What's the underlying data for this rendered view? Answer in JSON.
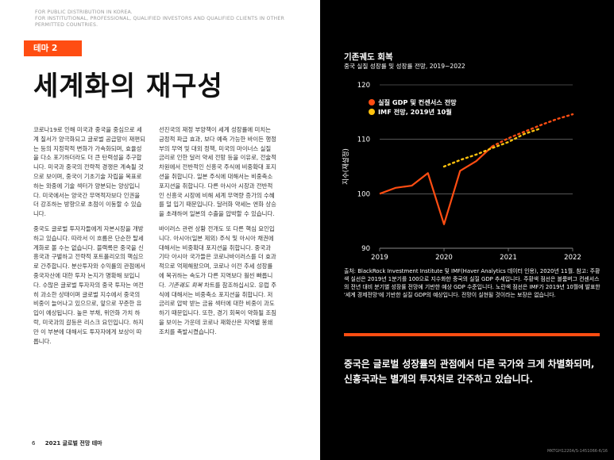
{
  "disclaimer": {
    "lines": [
      "FOR PUBLIC DISTRIBUTION IN KOREA.",
      "FOR INSTITUTIONAL, PROFESSIONAL, QUALIFIED INVESTORS AND QUALIFIED CLIENTS IN OTHER",
      "PERMITTED COUNTRIES."
    ]
  },
  "theme_tag": "테마 2",
  "title": "세계화의 재구성",
  "col1": {
    "p1": "코로나19로 인해 미국과 중국을 중심으로 세계 질서가 양극화되고 글로벌 공급망이 재편되는 등의 지정학적 변화가 가속화되며, 효율성을 다소 포기하더라도 더 큰 탄력성을 추구합니다. 미국과 중국의 전략적 경쟁은 계속될 것으로 보이며, 중국이 기초기술 자립을 목표로 하는 와중에 기술 섹터가 양분되는 양상입니다. 미국에서는 양국간 무역적자보다 인권을 더 강조하는 방향으로 초점이 이동할 수 있습니다.",
    "p2": "중국도 글로벌 투자자들에게 자본시장을 개방하고 있습니다. 따라서 이 흐름은 단순한 탈세계화로 볼 수는 없습니다. 블랙록은 중국을 신흥국과 구별하고 전략적 포트폴리오의 핵심으로 간주합니다. 분산투자와 수익률의 관점에서 중국자산에 대한 투자 논지가 명확해 보입니다. 수많은 글로벌 투자자의 중국 투자는 여전히 과소한 상태이며 글로벌 지수에서 중국의 비중이 늘어나고 있으므로, 앞으로 꾸준한 유입이 예상됩니다. 높은 부채, 위안화 가치 하락, 미국과의 갈등은 리스크 요인입니다. 하지만 이 부분에 대해서도 투자자에게 보상이 따릅니다."
  },
  "col2": {
    "p1": "선진국의 재정 부양책이 세계 성장률에 미치는 긍정적 파급 효과, 보다 예측 가능한 바이든 행정부의 무역 및 대외 정책, 미국의 마이너스 실질 금리로 인한 달러 약세 전망 등을 이유로, 전술적 차원에서 전반적인 신흥국 주식에 비중확대 포지션을 취합니다. 일본 주식에 대해서는 비중축소 포지션을 취합니다. 다른 아시아 시장과 전반적인 신흥국 시장에 비해 세계 무역량 증가의 수혜를 덜 입기 때문입니다. 달러화 약세는 엔화 상승을 초래하여 일본의 수출을 압박할 수 있습니다.",
    "p2a": "바이러스 관련 상황 전개도 또 다른 핵심 요인입니다. 아시아(일본 제외) 주식 및 아시아 채권에 대해서는 비중확대 포지션을 취합니다. 중국과 기타 아시아 국가들은 코로나바이러스를 더 효과적으로 억제해왔으며, 코로나 이전 추세 성장률에 복귀하는 속도가 다른 지역보다 훨씬 빠릅니다. ",
    "p2b": "기존궤도 회복",
    "p2c": " 차트를 참조하십시오. 유럽 주식에 대해서는 비중축소 포지션을 취합니다. 저금리로 압박 받는 금융 섹터에 대한 비중이 과도하기 때문입니다. 또한, 경기 회복이 약화될 조짐을 보이는 가운데 코로나 재확산은 지역별 봉쇄조치를 촉발시켰습니다."
  },
  "footer": {
    "page": "6",
    "title": "2021 글로벌 전망 테마"
  },
  "chart_title": "기존궤도 회복",
  "chart_subtitle": "중국 실질 성장률 및 성장률 전망, 2019~2022",
  "colors": {
    "orange": "#ff4d12",
    "yellow": "#ffc20e",
    "background": "#000000"
  },
  "chart_data": {
    "type": "line",
    "title": "기존궤도 회복",
    "subtitle": "중국 실질 성장률 및 성장률 전망, 2019~2022",
    "ylabel": "지수(재설정)",
    "xlim": [
      2019,
      2022
    ],
    "ylim": [
      90,
      120
    ],
    "yticks": [
      90,
      100,
      110,
      120
    ],
    "xticks": [
      2019,
      2020,
      2021,
      2022
    ],
    "tick_labels_y": [
      "90",
      "100",
      "110",
      "120"
    ],
    "tick_labels_x": [
      "2019",
      "2020",
      "2021",
      "2022"
    ],
    "legend_position": "top-left",
    "series": [
      {
        "name": "실질 GDP 및 컨센서스 전망",
        "style": "solid then dotted",
        "color": "#ff4d12",
        "points": [
          [
            2019.0,
            100.0
          ],
          [
            2019.25,
            101.1
          ],
          [
            2019.5,
            101.5
          ],
          [
            2019.75,
            103.8
          ],
          [
            2020.0,
            94.4
          ],
          [
            2020.25,
            104.2
          ],
          [
            2020.5,
            106.0
          ],
          [
            2020.75,
            108.7
          ],
          [
            2021.0,
            110.2
          ],
          [
            2021.25,
            111.4
          ],
          [
            2021.5,
            112.6
          ],
          [
            2021.75,
            113.7
          ],
          [
            2022.0,
            114.6
          ]
        ]
      },
      {
        "name": "IMF 전망, 2019년 10월",
        "style": "dotted",
        "color": "#ffc20e",
        "points": [
          [
            2020.0,
            105.6
          ],
          [
            2020.25,
            106.8
          ],
          [
            2020.5,
            107.8
          ],
          [
            2020.75,
            109.0
          ],
          [
            2021.0,
            110.1
          ],
          [
            2021.25,
            111.6
          ],
          [
            2021.5,
            112.6
          ]
        ]
      }
    ]
  },
  "source": "출처: BlackRock Investment Institute 및 IMF(Haver Analytics 데이터 인용), 2020년 11월. 참고: 주황색 실선은 2019년 1분기를 100으로 지수화한 중국의 실질 GDP 추세입니다. 주황색 점선은 블룸버그 컨센서스의 전년 대비 분기별 성장률 전망에 기반한 예상 GDP 수준입니다. 노란색 점선은 IMF가 2019년 10월에 발표한 '세계 경제전망'에 기반한 실질 GDP의 예상입니다. 전망이 실현될 것이라는 보장은 없습니다.",
  "quote": "중국은 글로벌 성장률의 관점에서 다른 국가와 크게 차별화되며, 신흥국과는 별개의 투자처로 간주하고 있습니다.",
  "code": "MKTGH1220A/S-1451066-6/16"
}
